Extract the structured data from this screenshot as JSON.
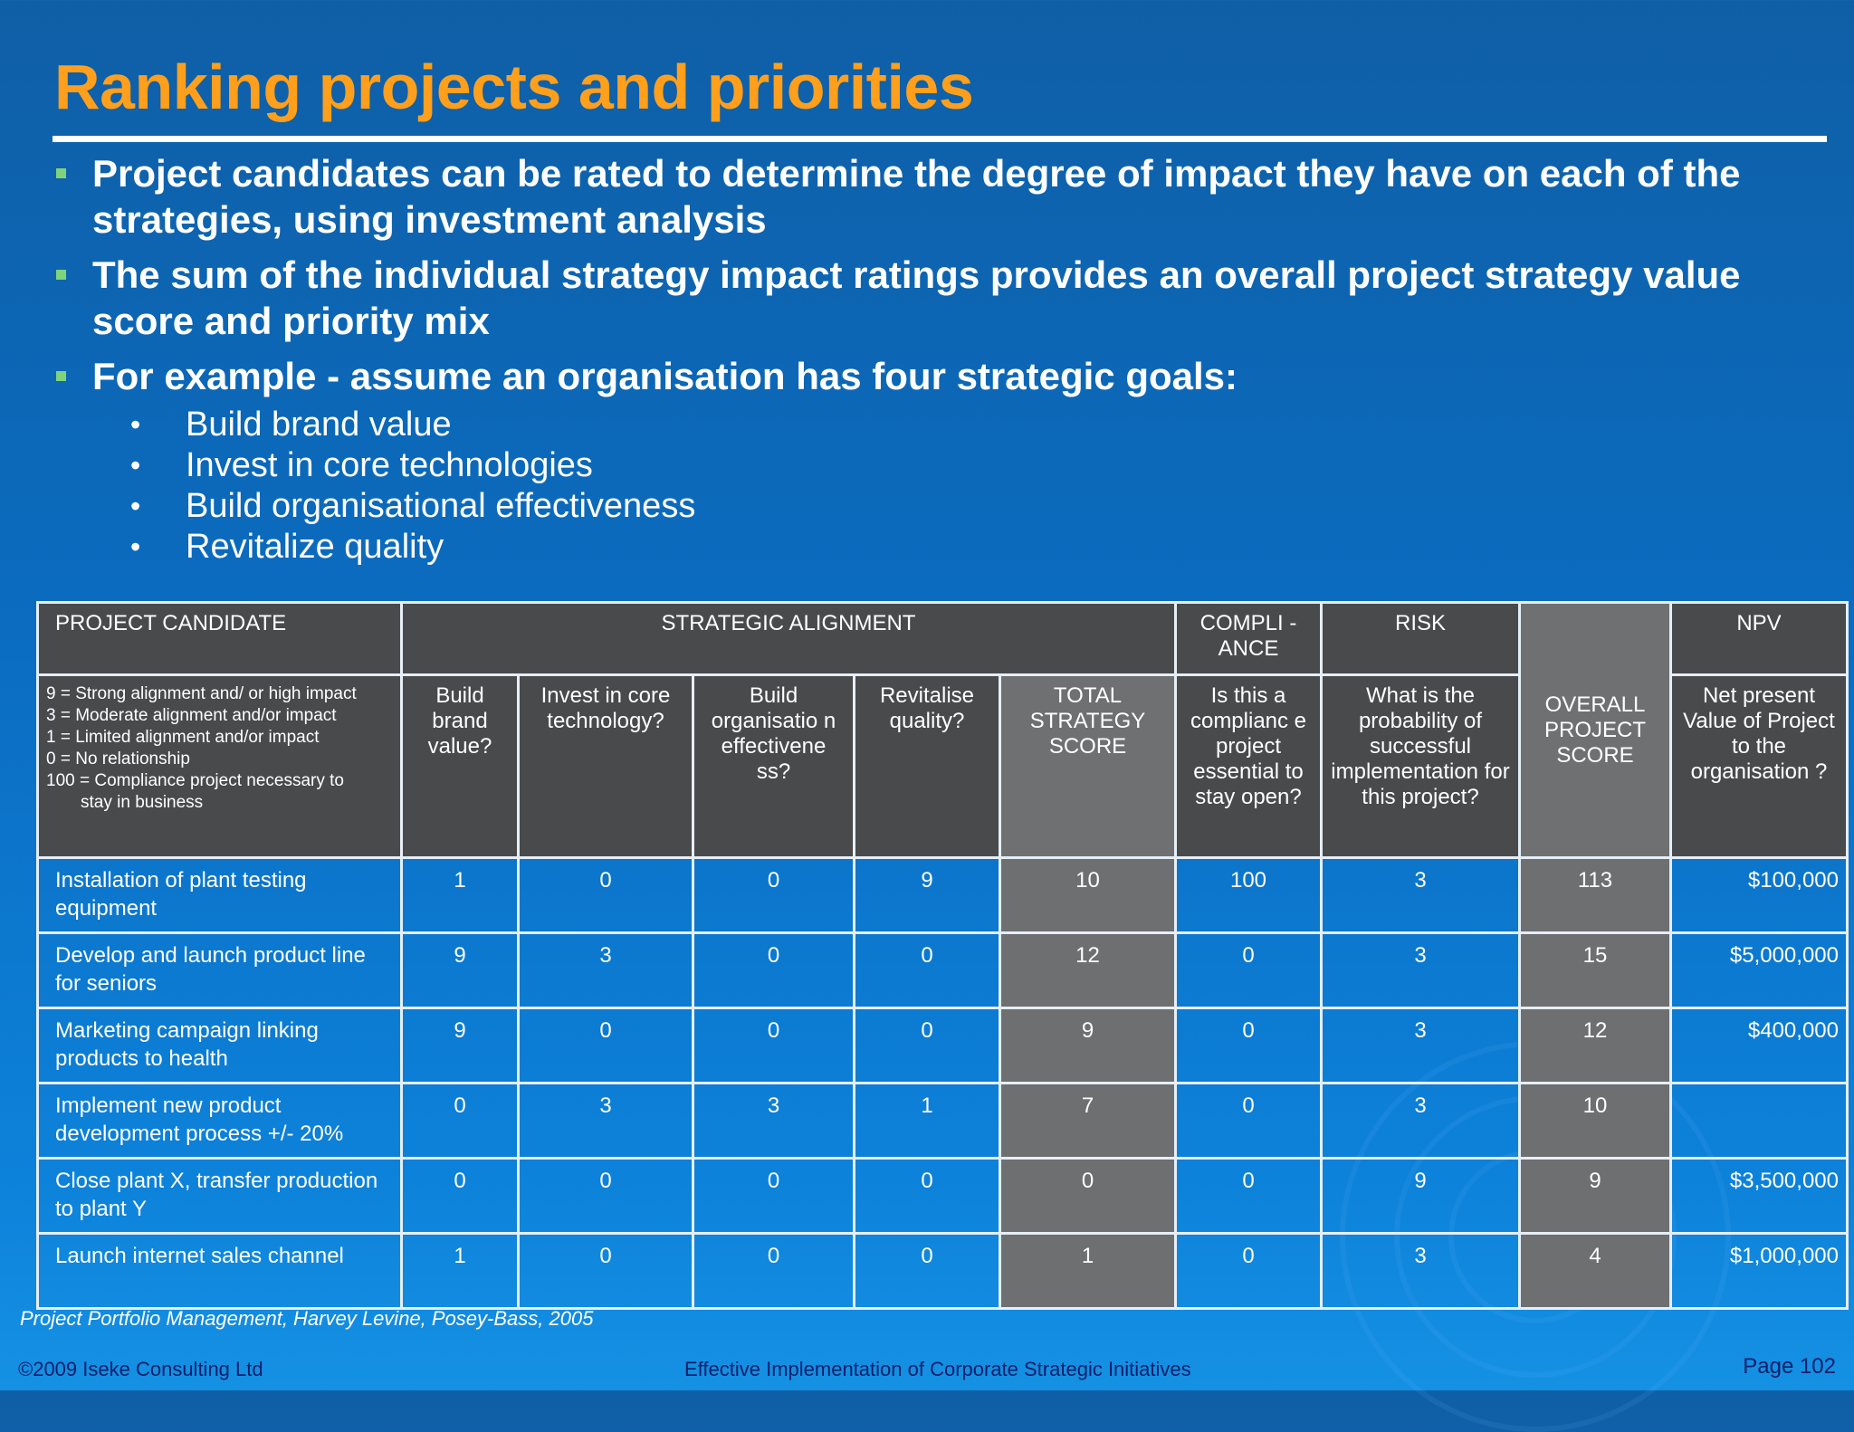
{
  "title": "Ranking projects and priorities",
  "bullets": [
    {
      "text": "Project candidates can be rated to determine the degree of impact they have on each of the strategies, using investment analysis"
    },
    {
      "text": "The sum of the individual strategy impact ratings provides an overall project strategy value score and priority mix"
    },
    {
      "text": "For example - assume an organisation has four strategic goals:",
      "sub": [
        "Build brand value",
        "Invest in core technologies",
        "Build organisational effectiveness",
        "Revitalize quality"
      ]
    }
  ],
  "table": {
    "groups": {
      "candidate": "PROJECT CANDIDATE",
      "alignment": "STRATEGIC ALIGNMENT",
      "compliance": "COMPLI - ANCE",
      "risk": "RISK",
      "overall": "OVERALL PROJECT SCORE",
      "npv": "NPV"
    },
    "legend": [
      "9 = Strong alignment and/ or high impact",
      "3 = Moderate alignment and/or impact",
      "1 = Limited alignment and/or impact",
      "0 = No relationship",
      "100 = Compliance project necessary to",
      "stay in business"
    ],
    "subheaders": {
      "brand": "Build brand value?",
      "core": "Invest in core technology?",
      "org": "Build organisatio n effectivene ss?",
      "quality": "Revitalise quality?",
      "total": "TOTAL STRATEGY SCORE",
      "compliance_q": "Is this a complianc e project essential to stay open?",
      "risk_q": "What is the probability of successful implementation for this project?",
      "npv_q": "Net present Value of Project to the organisation ?"
    },
    "rows": [
      {
        "name": "Installation of plant testing equipment",
        "brand": "1",
        "core": "0",
        "org": "0",
        "quality": "9",
        "total": "10",
        "compliance": "100",
        "risk": "3",
        "overall": "113",
        "npv": "$100,000"
      },
      {
        "name": "Develop and launch product line for seniors",
        "brand": "9",
        "core": "3",
        "org": "0",
        "quality": "0",
        "total": "12",
        "compliance": "0",
        "risk": "3",
        "overall": "15",
        "npv": "$5,000,000"
      },
      {
        "name": "Marketing campaign linking products to health",
        "brand": "9",
        "core": "0",
        "org": "0",
        "quality": "0",
        "total": "9",
        "compliance": "0",
        "risk": "3",
        "overall": "12",
        "npv": "$400,000"
      },
      {
        "name": "Implement new product development process +/- 20%",
        "brand": "0",
        "core": "3",
        "org": "3",
        "quality": "1",
        "total": "7",
        "compliance": "0",
        "risk": "3",
        "overall": "10",
        "npv": ""
      },
      {
        "name": "Close plant X, transfer production to plant Y",
        "brand": "0",
        "core": "0",
        "org": "0",
        "quality": "0",
        "total": "0",
        "compliance": "0",
        "risk": "9",
        "overall": "9",
        "npv": "$3,500,000"
      },
      {
        "name": "Launch internet sales channel",
        "brand": "1",
        "core": "0",
        "org": "0",
        "quality": "0",
        "total": "1",
        "compliance": "0",
        "risk": "3",
        "overall": "4",
        "npv": "$1,000,000"
      }
    ]
  },
  "source": "Project Portfolio Management, Harvey Levine, Posey-Bass, 2005",
  "footer": {
    "copyright": "©2009 Iseke Consulting Ltd",
    "center": "Effective Implementation of Corporate Strategic Initiatives",
    "page": "Page 102"
  }
}
